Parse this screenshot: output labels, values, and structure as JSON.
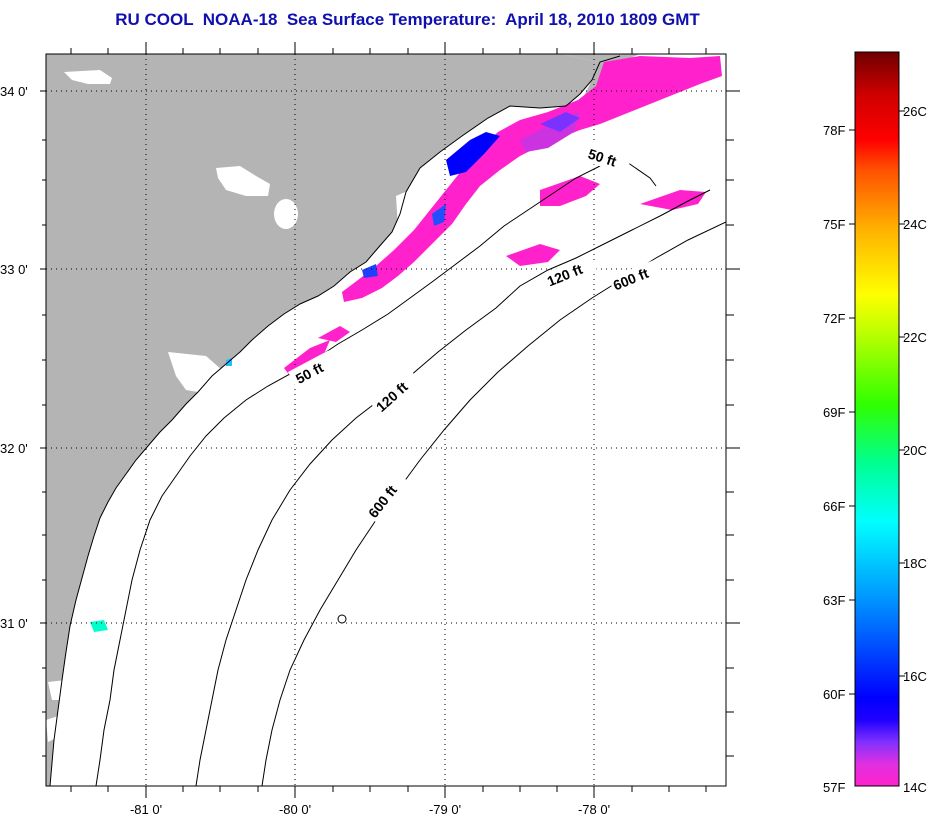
{
  "title": "RU COOL  NOAA-18  Sea Surface Temperature:  April 18, 2010 1809 GMT",
  "map": {
    "lat_labels": [
      {
        "text": "34 0'",
        "lat": 34
      },
      {
        "text": "33 0'",
        "lat": 33
      },
      {
        "text": "32 0'",
        "lat": 32
      },
      {
        "text": "31 0'",
        "lat": 31
      }
    ],
    "lon_labels": [
      {
        "text": "-81 0'",
        "lon": -81
      },
      {
        "text": "-80 0'",
        "lon": -80
      },
      {
        "text": "-79 0'",
        "lon": -79
      },
      {
        "text": "-78 0'",
        "lon": -78
      }
    ],
    "contour_labels": [
      "50 ft",
      "50 ft",
      "120 ft",
      "120 ft",
      "600 ft",
      "600 ft"
    ],
    "land_color": "#b4b4b4",
    "ocean_color": "#ffffff"
  },
  "colorbar": {
    "fahrenheit": [
      "78F",
      "75F",
      "72F",
      "69F",
      "66F",
      "63F",
      "60F",
      "57F"
    ],
    "celsius": [
      "26C",
      "24C",
      "22C",
      "20C",
      "18C",
      "16C",
      "14C"
    ],
    "colors": [
      "#ff22cc",
      "#cc33e0",
      "#7a33ff",
      "#0000ff",
      "#0077ff",
      "#00c8ff",
      "#00ffe0",
      "#00ff88",
      "#44ff00",
      "#c8ff00",
      "#ffff00",
      "#ffc800",
      "#ff8000",
      "#ff3000",
      "#ff0000",
      "#d00000",
      "#800000"
    ]
  }
}
